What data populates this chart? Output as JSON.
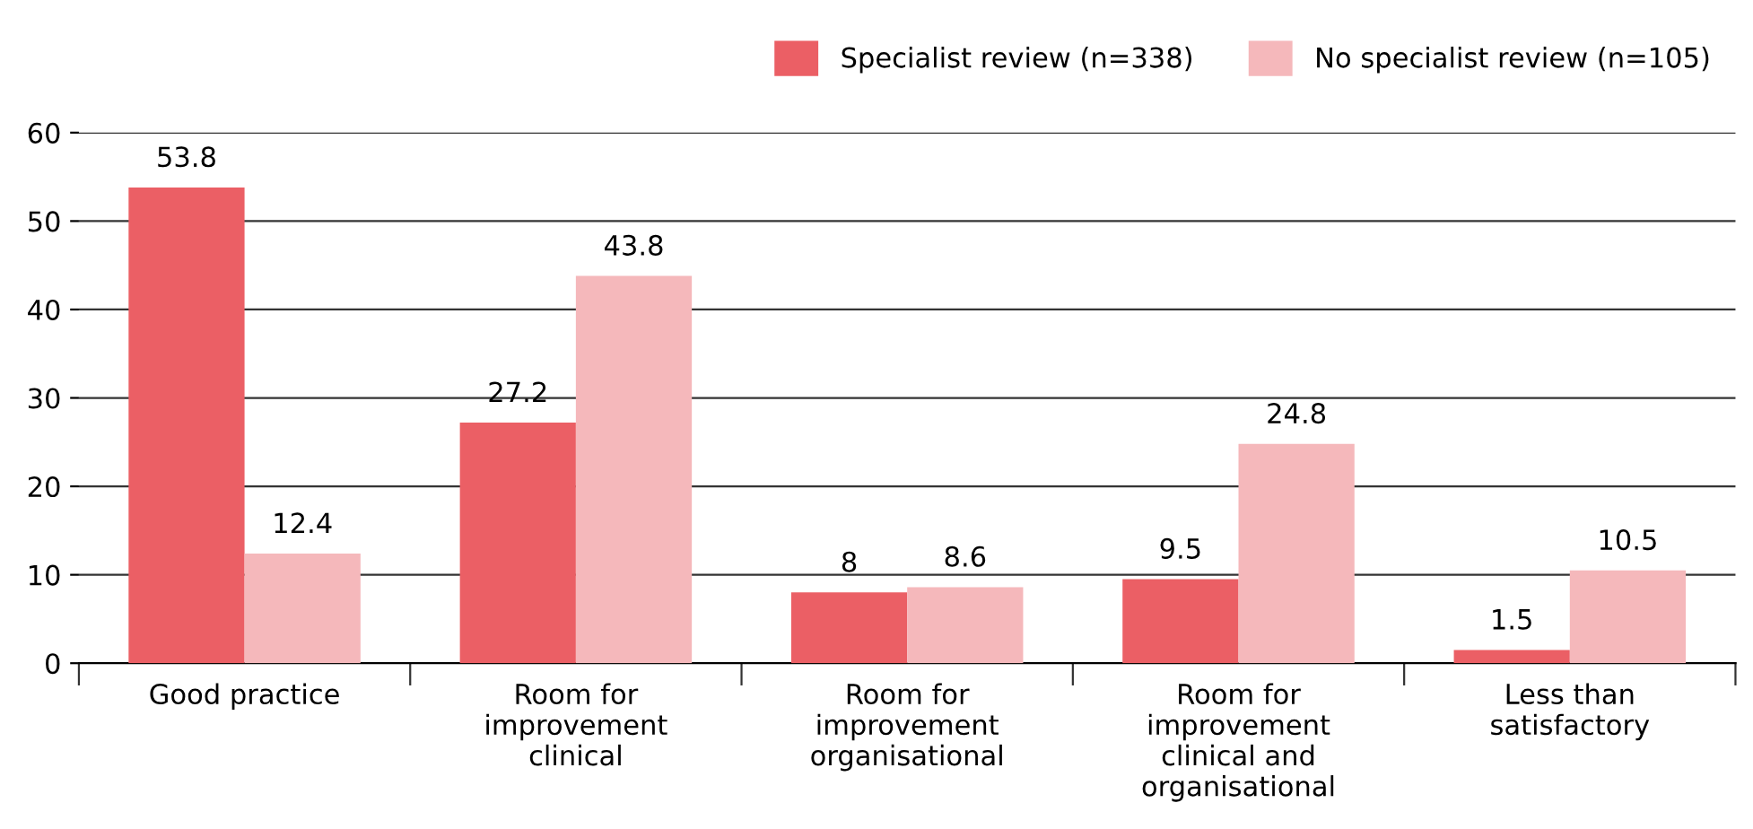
{
  "chart_data": {
    "type": "bar",
    "categories": [
      "Good practice",
      "Room for\nimprovement\nclinical",
      "Room for\nimprovement\norganisational",
      "Room for\nimprovement\nclinical and\norganisational",
      "Less than\nsatisfactory"
    ],
    "series": [
      {
        "name": "Specialist review (n=338)",
        "color": "#eb5f65",
        "values": [
          53.8,
          27.2,
          8,
          9.5,
          1.5
        ]
      },
      {
        "name": "No specialist review (n=105)",
        "color": "#f5b8bb",
        "values": [
          12.4,
          43.8,
          8.6,
          24.8,
          10.5
        ]
      }
    ],
    "ylim": [
      0,
      60
    ],
    "yticks": [
      0,
      10,
      20,
      30,
      40,
      50,
      60
    ],
    "grid": "y",
    "legend": "top right",
    "data_labels": true
  }
}
